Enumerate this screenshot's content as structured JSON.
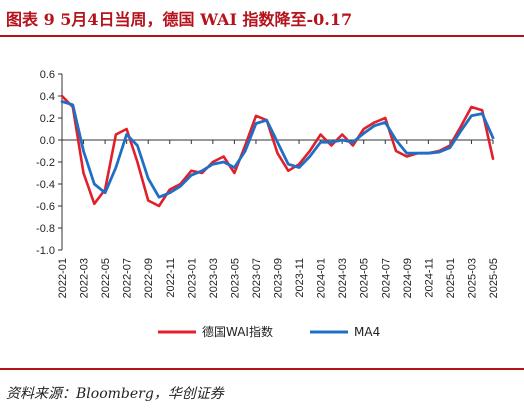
{
  "title": "图表 9   5月4日当周，德国 WAI 指数降至-0.17",
  "source": "资料来源：Bloomberg，华创证券",
  "colors": {
    "brand": "#b5121b",
    "wai": "#e0202a",
    "ma4": "#1f6fc5"
  },
  "chart_data": {
    "type": "line",
    "title": "",
    "xlabel": "",
    "ylabel": "",
    "ylim": [
      -1.0,
      0.6
    ],
    "yticks": [
      "0.6",
      "0.4",
      "0.2",
      "0.0",
      "-0.2",
      "-0.4",
      "-0.6",
      "-0.8",
      "-1.0"
    ],
    "xlim": [
      "2022-01",
      "2025-05"
    ],
    "x_tick_labels": [
      "2022-01",
      "2022-03",
      "2022-05",
      "2022-07",
      "2022-09",
      "2022-11",
      "2023-01",
      "2023-03",
      "2023-05",
      "2023-07",
      "2023-09",
      "2023-11",
      "2024-01",
      "2024-03",
      "2024-05",
      "2024-07",
      "2024-09",
      "2024-11",
      "2025-01",
      "2025-03",
      "2025-05"
    ],
    "legend_position": "bottom",
    "grid": false,
    "series": [
      {
        "name": "德国WAI指数",
        "color": "#e0202a",
        "x": [
          "2022-01",
          "2022-02",
          "2022-03",
          "2022-04",
          "2022-05",
          "2022-06",
          "2022-07",
          "2022-08",
          "2022-09",
          "2022-10",
          "2022-11",
          "2022-12",
          "2023-01",
          "2023-02",
          "2023-03",
          "2023-04",
          "2023-05",
          "2023-06",
          "2023-07",
          "2023-08",
          "2023-09",
          "2023-10",
          "2023-11",
          "2023-12",
          "2024-01",
          "2024-02",
          "2024-03",
          "2024-04",
          "2024-05",
          "2024-06",
          "2024-07",
          "2024-08",
          "2024-09",
          "2024-10",
          "2024-11",
          "2024-12",
          "2025-01",
          "2025-02",
          "2025-03",
          "2025-04",
          "2025-05"
        ],
        "values": [
          0.4,
          0.3,
          -0.3,
          -0.58,
          -0.45,
          0.05,
          0.1,
          -0.2,
          -0.55,
          -0.6,
          -0.45,
          -0.4,
          -0.28,
          -0.3,
          -0.2,
          -0.15,
          -0.3,
          -0.05,
          0.22,
          0.18,
          -0.12,
          -0.28,
          -0.22,
          -0.1,
          0.05,
          -0.05,
          0.05,
          -0.05,
          0.1,
          0.16,
          0.2,
          -0.1,
          -0.15,
          -0.12,
          -0.12,
          -0.1,
          -0.05,
          0.12,
          0.3,
          0.27,
          -0.17
        ]
      },
      {
        "name": "MA4",
        "color": "#1f6fc5",
        "x": [
          "2022-01",
          "2022-02",
          "2022-03",
          "2022-04",
          "2022-05",
          "2022-06",
          "2022-07",
          "2022-08",
          "2022-09",
          "2022-10",
          "2022-11",
          "2022-12",
          "2023-01",
          "2023-02",
          "2023-03",
          "2023-04",
          "2023-05",
          "2023-06",
          "2023-07",
          "2023-08",
          "2023-09",
          "2023-10",
          "2023-11",
          "2023-12",
          "2024-01",
          "2024-02",
          "2024-03",
          "2024-04",
          "2024-05",
          "2024-06",
          "2024-07",
          "2024-08",
          "2024-09",
          "2024-10",
          "2024-11",
          "2024-12",
          "2025-01",
          "2025-02",
          "2025-03",
          "2025-04",
          "2025-05"
        ],
        "values": [
          0.35,
          0.32,
          -0.1,
          -0.4,
          -0.48,
          -0.25,
          0.05,
          -0.05,
          -0.35,
          -0.52,
          -0.48,
          -0.42,
          -0.32,
          -0.28,
          -0.22,
          -0.2,
          -0.25,
          -0.1,
          0.15,
          0.18,
          -0.02,
          -0.22,
          -0.25,
          -0.15,
          -0.02,
          -0.02,
          0.0,
          -0.02,
          0.06,
          0.13,
          0.16,
          0.0,
          -0.12,
          -0.12,
          -0.12,
          -0.11,
          -0.07,
          0.08,
          0.22,
          0.24,
          0.02
        ]
      }
    ]
  }
}
